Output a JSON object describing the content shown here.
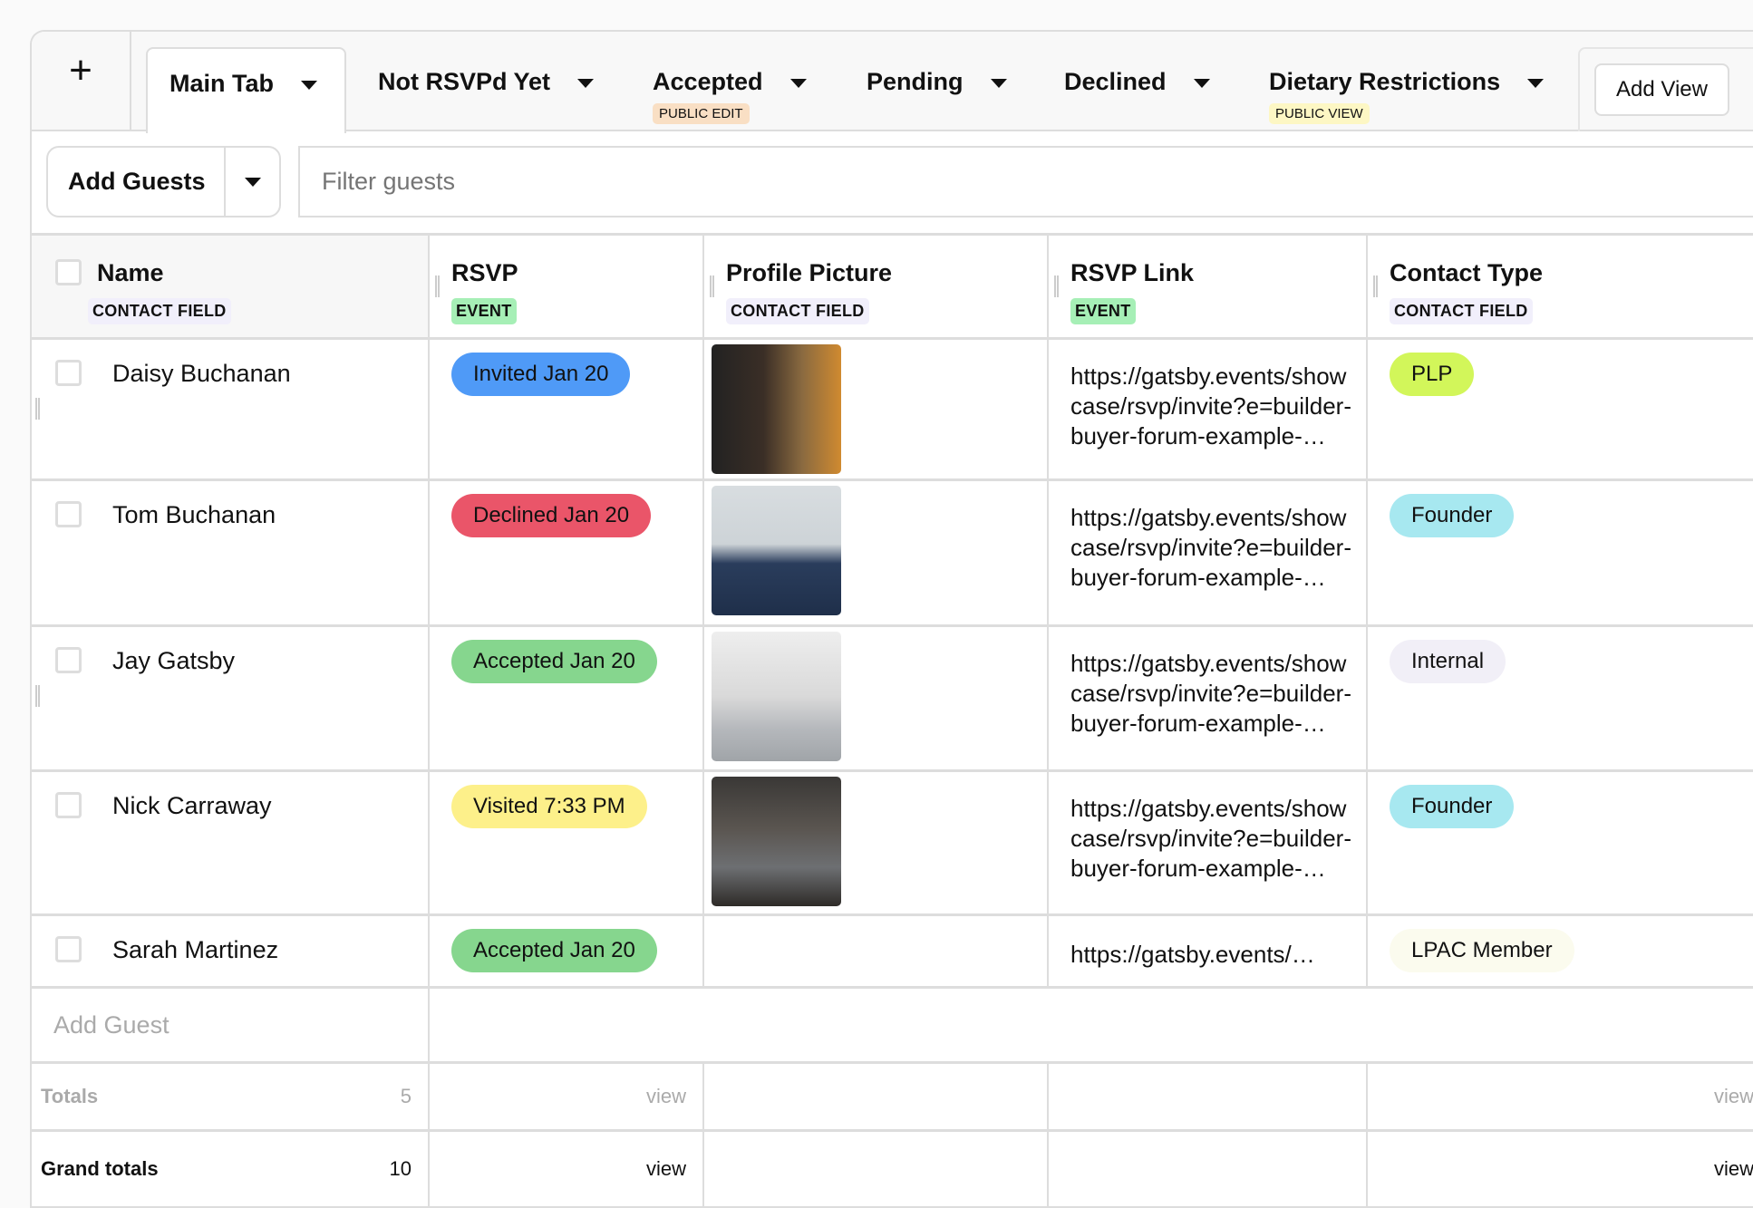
{
  "tabs": {
    "add_icon": "plus-icon",
    "items": [
      {
        "label": "Main Tab",
        "active": true
      },
      {
        "label": "Not RSVPd Yet"
      },
      {
        "label": "Accepted",
        "tag": "PUBLIC EDIT",
        "tag_color": "#f9dfc4"
      },
      {
        "label": "Pending"
      },
      {
        "label": "Declined"
      },
      {
        "label": "Dietary Restrictions",
        "tag": "PUBLIC VIEW",
        "tag_color": "#fdf7c4"
      }
    ],
    "add_view": "Add View"
  },
  "toolbar": {
    "add_guests": "Add Guests",
    "filter_placeholder": "Filter guests"
  },
  "columns": [
    {
      "title": "Name",
      "tag": "CONTACT FIELD"
    },
    {
      "title": "RSVP",
      "tag": "EVENT"
    },
    {
      "title": "Profile Picture",
      "tag": "CONTACT FIELD"
    },
    {
      "title": "RSVP Link",
      "tag": "EVENT"
    },
    {
      "title": "Contact Type",
      "tag": "CONTACT FIELD"
    }
  ],
  "rows": [
    {
      "name": "Daisy Buchanan",
      "rsvp": "Invited Jan 20",
      "rsvp_color": "#4f9af7",
      "link": "https://gatsby.events/showcase/rsvp/invite?e=builder-buyer-forum-example-…",
      "type": "PLP",
      "type_color": "#d2f65a"
    },
    {
      "name": "Tom Buchanan",
      "rsvp": "Declined Jan 20",
      "rsvp_color": "#ea5569",
      "link": "https://gatsby.events/showcase/rsvp/invite?e=builder-buyer-forum-example-…",
      "type": "Founder",
      "type_color": "#a7e8f0"
    },
    {
      "name": "Jay Gatsby",
      "rsvp": "Accepted Jan 20",
      "rsvp_color": "#86d68e",
      "link": "https://gatsby.events/showcase/rsvp/invite?e=builder-buyer-forum-example-…",
      "type": "Internal",
      "type_color": "#f1eff7"
    },
    {
      "name": "Nick Carraway",
      "rsvp": "Visited 7:33 PM",
      "rsvp_color": "#fdf08a",
      "link": "https://gatsby.events/showcase/rsvp/invite?e=builder-buyer-forum-example-…",
      "type": "Founder",
      "type_color": "#a7e8f0"
    },
    {
      "name": "Sarah Martinez",
      "rsvp": "Accepted Jan 20",
      "rsvp_color": "#86d68e",
      "link": "https://gatsby.events/…",
      "type": "LPAC Member",
      "type_color": "#fbfbee"
    }
  ],
  "add_guest": "Add Guest",
  "totals": {
    "label": "Totals",
    "count": "5",
    "rsvp": "view",
    "type": "view"
  },
  "grand_totals": {
    "label": "Grand totals",
    "count": "10",
    "rsvp": "view",
    "type": "view"
  }
}
